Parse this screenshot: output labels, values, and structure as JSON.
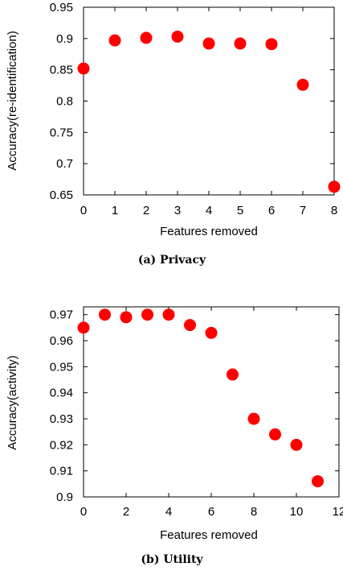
{
  "colors": {
    "marker": "#ff0000"
  },
  "chart_data": [
    {
      "type": "scatter",
      "caption": "(a) Privacy",
      "xlabel": "Features removed",
      "ylabel": "Accuracy(re-identification)",
      "xlim": [
        0,
        8
      ],
      "ylim": [
        0.65,
        0.95
      ],
      "xticks": [
        0,
        1,
        2,
        3,
        4,
        5,
        6,
        7,
        8
      ],
      "yticks": [
        0.65,
        0.7,
        0.75,
        0.8,
        0.85,
        0.9,
        0.95
      ],
      "xtick_labels": [
        "0",
        "1",
        "2",
        "3",
        "4",
        "5",
        "6",
        "7",
        "8"
      ],
      "ytick_labels": [
        "0.65",
        "0.7",
        "0.75",
        "0.8",
        "0.85",
        "0.9",
        "0.95"
      ],
      "x": [
        0,
        1,
        2,
        3,
        4,
        5,
        6,
        7,
        8
      ],
      "y": [
        0.852,
        0.897,
        0.901,
        0.903,
        0.892,
        0.892,
        0.891,
        0.826,
        0.663
      ],
      "grid": false
    },
    {
      "type": "scatter",
      "caption": "(b) Utility",
      "xlabel": "Features removed",
      "ylabel": "Accuracy(activity)",
      "xlim": [
        0,
        12
      ],
      "ylim": [
        0.9,
        0.973
      ],
      "xticks": [
        0,
        2,
        4,
        6,
        8,
        10,
        12
      ],
      "yticks": [
        0.9,
        0.91,
        0.92,
        0.93,
        0.94,
        0.95,
        0.96,
        0.97
      ],
      "xtick_labels": [
        "0",
        "2",
        "4",
        "6",
        "8",
        "10",
        "12"
      ],
      "ytick_labels": [
        "0.9",
        "0.91",
        "0.92",
        "0.93",
        "0.94",
        "0.95",
        "0.96",
        "0.97"
      ],
      "x": [
        0,
        1,
        2,
        3,
        4,
        5,
        6,
        7,
        8,
        9,
        10,
        11
      ],
      "y": [
        0.965,
        0.97,
        0.969,
        0.97,
        0.97,
        0.966,
        0.963,
        0.947,
        0.93,
        0.924,
        0.92,
        0.906
      ],
      "grid": false
    }
  ]
}
